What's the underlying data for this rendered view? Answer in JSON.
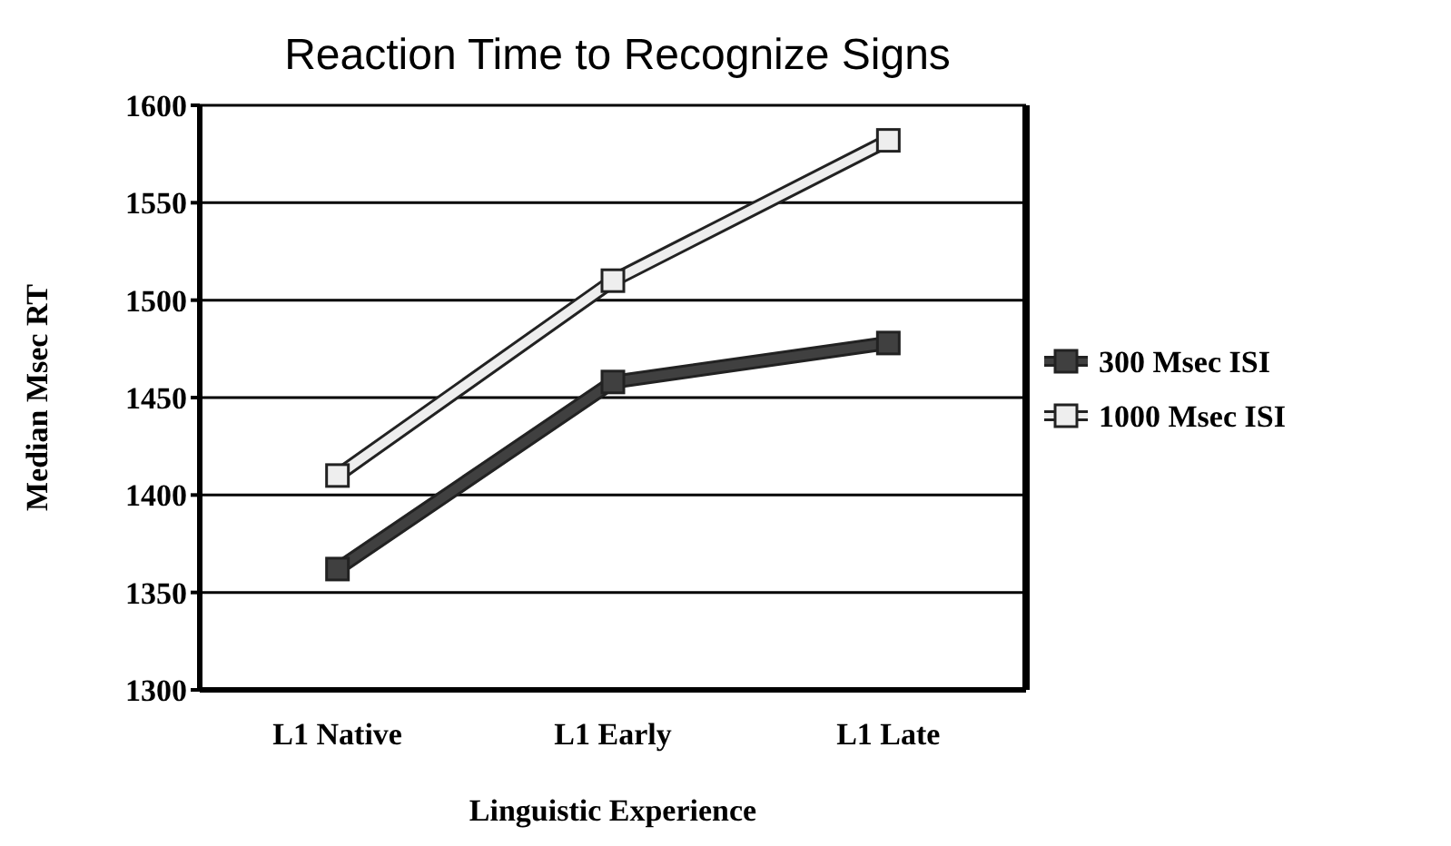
{
  "chart_data": {
    "type": "line",
    "title": "Reaction Time to Recognize Signs",
    "xlabel": "Linguistic Experience",
    "ylabel": "Median Msec RT",
    "categories": [
      "L1 Native",
      "L1 Early",
      "L1 Late"
    ],
    "series": [
      {
        "name": "300 Msec ISI",
        "color": "#404040",
        "values": [
          1362,
          1458,
          1478
        ]
      },
      {
        "name": "1000 Msec ISI",
        "color": "#eeeeee",
        "values": [
          1410,
          1510,
          1582
        ]
      }
    ],
    "ylim": [
      1300,
      1600
    ],
    "yticks": [
      1300,
      1350,
      1400,
      1450,
      1500,
      1550,
      1600
    ],
    "grid": "y",
    "legend": "right",
    "marker": "square",
    "line_style": "solid"
  }
}
